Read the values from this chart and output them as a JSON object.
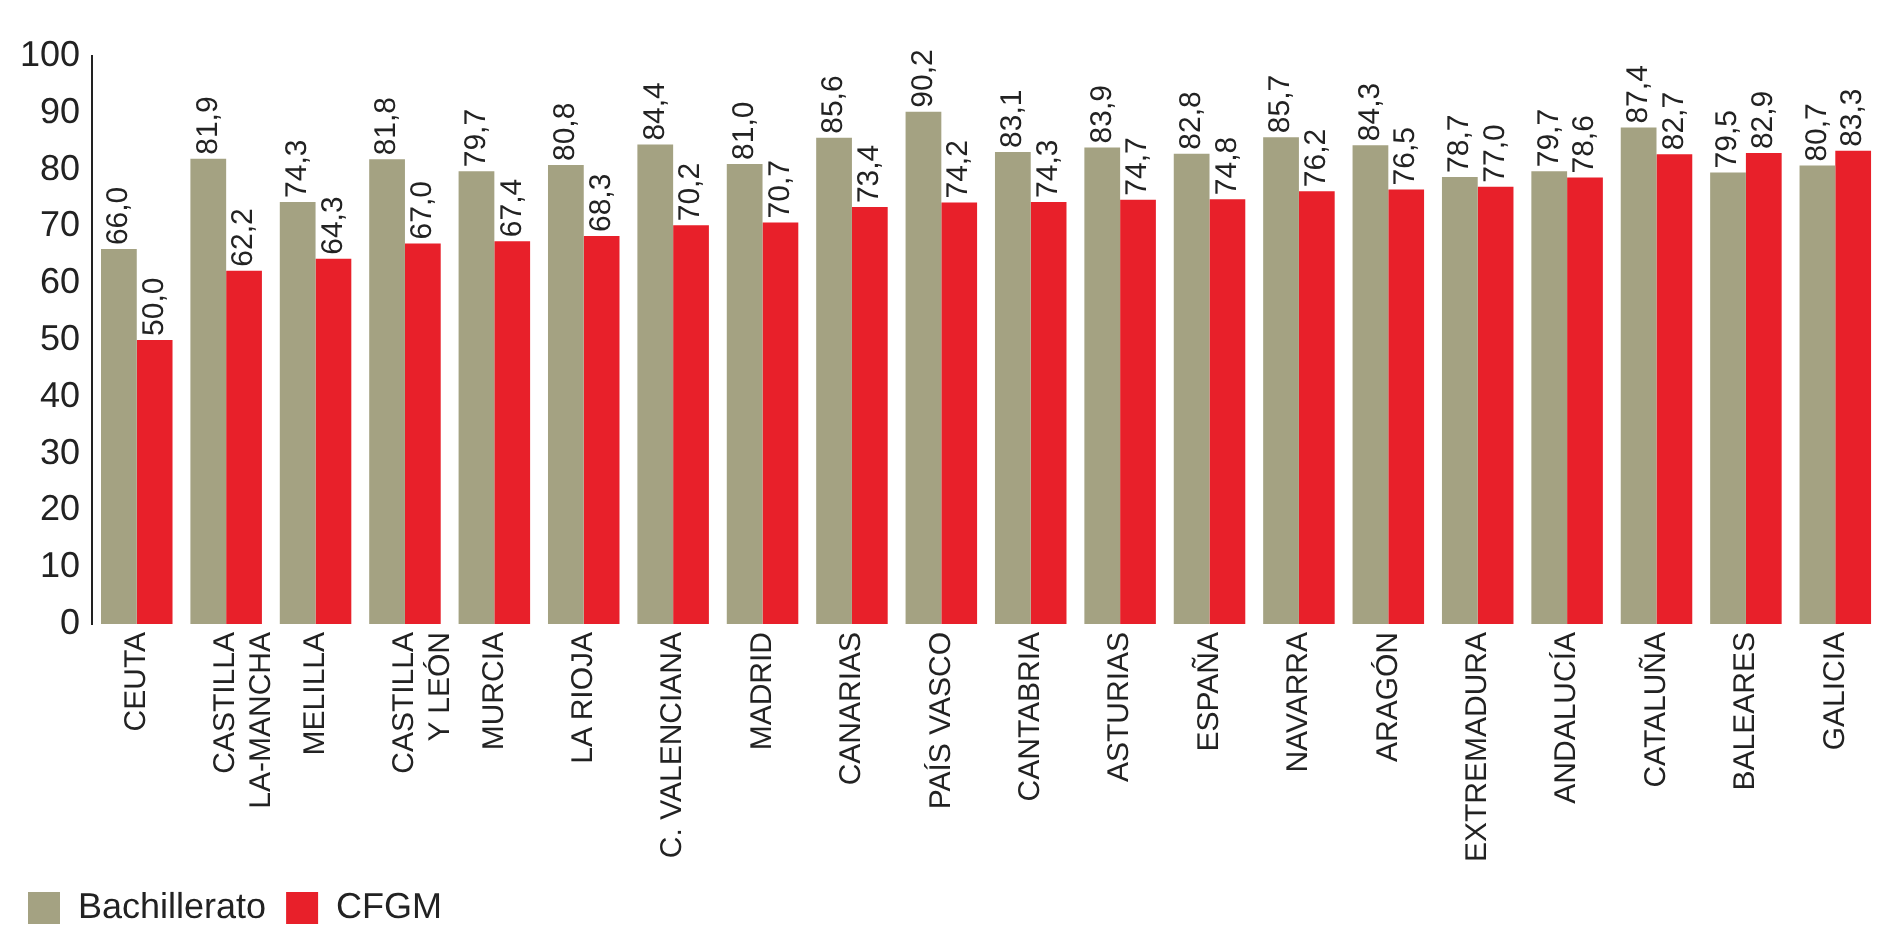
{
  "chart_data": {
    "type": "bar",
    "categories": [
      "CEUTA",
      "CASTILLA\nLA-MANCHA",
      "MELILLA",
      "CASTILLA\nY LEÓN",
      "MURCIA",
      "LA RIOJA",
      "C. VALENCIANA",
      "MADRID",
      "CANARIAS",
      "PAÍS VASCO",
      "CANTABRIA",
      "ASTURIAS",
      "ESPAÑA",
      "NAVARRA",
      "ARAGÓN",
      "EXTREMADURA",
      "ANDALUCÍA",
      "CATALUÑA",
      "BALEARES",
      "GALICIA"
    ],
    "series": [
      {
        "name": "Bachillerato",
        "color": "#a4a282",
        "values": [
          66.0,
          81.9,
          74.3,
          81.8,
          79.7,
          80.8,
          84.4,
          81.0,
          85.6,
          90.2,
          83.1,
          83.9,
          82.8,
          85.7,
          84.3,
          78.7,
          79.7,
          87.4,
          79.5,
          80.7
        ],
        "value_labels": [
          "66,0",
          "81,9",
          "74,3",
          "81,8",
          "79,7",
          "80,8",
          "84,4",
          "81,0",
          "85,6",
          "90,2",
          "83,1",
          "83,9",
          "82,8",
          "85,7",
          "84,3",
          "78,7",
          "79,7",
          "87,4",
          "79,5",
          "80,7"
        ]
      },
      {
        "name": "CFGM",
        "color": "#e8202a",
        "values": [
          50.0,
          62.2,
          64.3,
          67.0,
          67.4,
          68.3,
          70.2,
          70.7,
          73.4,
          74.2,
          74.3,
          74.7,
          74.8,
          76.2,
          76.5,
          77.0,
          78.6,
          82.7,
          82.9,
          83.3
        ],
        "value_labels": [
          "50,0",
          "62,2",
          "64,3",
          "67,0",
          "67,4",
          "68,3",
          "70,2",
          "70,7",
          "73,4",
          "74,2",
          "74,3",
          "74,7",
          "74,8",
          "76,2",
          "76,5",
          "77,0",
          "78,6",
          "82,7",
          "82,9",
          "83,3"
        ]
      }
    ],
    "ylim": [
      0,
      100
    ],
    "yticks": [
      0,
      10,
      20,
      30,
      40,
      50,
      60,
      70,
      80,
      90,
      100
    ],
    "grid": false,
    "legend": "bottom left"
  }
}
